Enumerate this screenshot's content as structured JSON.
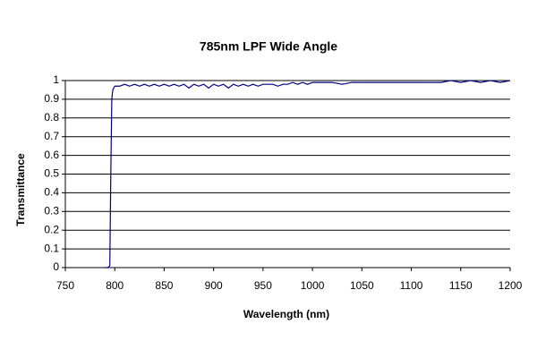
{
  "chart_data": {
    "type": "line",
    "title": "785nm LPF Wide Angle",
    "x_label": "Wavelength  (nm)",
    "y_label": "Transmittance",
    "x": [
      790,
      793,
      795,
      796,
      797,
      798,
      800,
      805,
      810,
      815,
      820,
      825,
      830,
      835,
      840,
      845,
      850,
      855,
      860,
      865,
      870,
      875,
      880,
      885,
      890,
      895,
      900,
      905,
      910,
      915,
      920,
      925,
      930,
      935,
      940,
      945,
      950,
      955,
      960,
      965,
      970,
      975,
      980,
      985,
      990,
      995,
      1000,
      1010,
      1020,
      1030,
      1040,
      1050,
      1060,
      1070,
      1080,
      1090,
      1100,
      1110,
      1120,
      1130,
      1140,
      1150,
      1160,
      1170,
      1180,
      1190,
      1200
    ],
    "series": [
      {
        "color": "#000080",
        "values": [
          0,
          0,
          0.01,
          0.5,
          0.9,
          0.95,
          0.97,
          0.97,
          0.98,
          0.97,
          0.98,
          0.97,
          0.98,
          0.97,
          0.98,
          0.97,
          0.98,
          0.97,
          0.98,
          0.97,
          0.98,
          0.96,
          0.98,
          0.97,
          0.98,
          0.96,
          0.98,
          0.97,
          0.98,
          0.96,
          0.98,
          0.97,
          0.98,
          0.97,
          0.98,
          0.97,
          0.98,
          0.98,
          0.98,
          0.97,
          0.98,
          0.98,
          0.99,
          0.98,
          0.99,
          0.98,
          0.99,
          0.99,
          0.99,
          0.98,
          0.99,
          0.99,
          0.99,
          0.99,
          0.99,
          0.99,
          0.99,
          0.99,
          0.99,
          0.99,
          1.0,
          0.99,
          1.0,
          0.99,
          1.0,
          0.99,
          1.0
        ]
      }
    ],
    "xlim": [
      750,
      1200
    ],
    "xticks": [
      750,
      800,
      850,
      900,
      950,
      1000,
      1050,
      1100,
      1150,
      1200
    ],
    "ylim": [
      0,
      1
    ],
    "yticks": [
      0,
      0.1,
      0.2,
      0.3,
      0.4,
      0.5,
      0.6,
      0.7,
      0.8,
      0.9,
      1
    ],
    "grid": true
  }
}
